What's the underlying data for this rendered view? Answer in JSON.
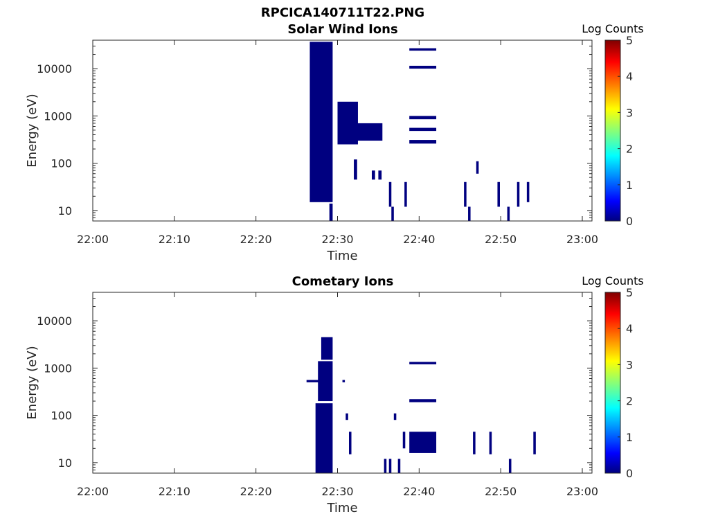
{
  "figure_title": "RPCICA140711T22.PNG",
  "chart_data": [
    {
      "type": "heatmap",
      "title": "Solar Wind Ions",
      "xlabel": "Time",
      "ylabel": "Energy (eV)",
      "x_ticks": [
        "22:00",
        "22:10",
        "22:20",
        "22:30",
        "22:40",
        "22:50",
        "23:00"
      ],
      "y_ticks": [
        "10",
        "100",
        "1000",
        "10000"
      ],
      "xlim": [
        "22:00",
        "23:00"
      ],
      "ylim": [
        6,
        40000
      ],
      "yscale": "log",
      "colorbar": {
        "label": "Log Counts",
        "min": 0,
        "max": 5,
        "ticks": [
          "0",
          "1",
          "2",
          "3",
          "4",
          "5"
        ]
      },
      "cells": [
        {
          "t0": "22:26.6",
          "t1": "22:29.4",
          "e0": 15,
          "e1": 37000,
          "v": 0
        },
        {
          "t0": "22:29.0",
          "t1": "22:29.4",
          "e0": 6,
          "e1": 14,
          "v": 0
        },
        {
          "t0": "22:30.0",
          "t1": "22:32.5",
          "e0": 250,
          "e1": 2000,
          "v": 0
        },
        {
          "t0": "22:31.5",
          "t1": "22:35.5",
          "e0": 300,
          "e1": 700,
          "v": 0
        },
        {
          "t0": "22:32.0",
          "t1": "22:32.4",
          "e0": 45,
          "e1": 120,
          "v": 0
        },
        {
          "t0": "22:34.2",
          "t1": "22:34.6",
          "e0": 45,
          "e1": 70,
          "v": 0
        },
        {
          "t0": "22:35.0",
          "t1": "22:35.4",
          "e0": 45,
          "e1": 70,
          "v": 0
        },
        {
          "t0": "22:36.3",
          "t1": "22:36.6",
          "e0": 12,
          "e1": 40,
          "v": 0
        },
        {
          "t0": "22:36.6",
          "t1": "22:36.9",
          "e0": 6,
          "e1": 12,
          "v": 0
        },
        {
          "t0": "22:38.2",
          "t1": "22:38.5",
          "e0": 12,
          "e1": 40,
          "v": 0
        },
        {
          "t0": "22:38.8",
          "t1": "22:42.1",
          "e0": 24000,
          "e1": 27000,
          "v": 0
        },
        {
          "t0": "22:38.8",
          "t1": "22:42.1",
          "e0": 10000,
          "e1": 11500,
          "v": 0
        },
        {
          "t0": "22:38.8",
          "t1": "22:42.1",
          "e0": 850,
          "e1": 1000,
          "v": 0
        },
        {
          "t0": "22:38.8",
          "t1": "22:42.1",
          "e0": 480,
          "e1": 560,
          "v": 0
        },
        {
          "t0": "22:38.8",
          "t1": "22:42.1",
          "e0": 260,
          "e1": 310,
          "v": 0
        },
        {
          "t0": "22:45.5",
          "t1": "22:45.8",
          "e0": 12,
          "e1": 40,
          "v": 0
        },
        {
          "t0": "22:46.0",
          "t1": "22:46.3",
          "e0": 6,
          "e1": 12,
          "v": 0
        },
        {
          "t0": "22:47.0",
          "t1": "22:47.3",
          "e0": 60,
          "e1": 110,
          "v": 0
        },
        {
          "t0": "22:49.6",
          "t1": "22:49.9",
          "e0": 12,
          "e1": 40,
          "v": 0
        },
        {
          "t0": "22:50.8",
          "t1": "22:51.1",
          "e0": 6,
          "e1": 12,
          "v": 0
        },
        {
          "t0": "22:52.0",
          "t1": "22:52.3",
          "e0": 12,
          "e1": 40,
          "v": 0
        },
        {
          "t0": "22:53.2",
          "t1": "22:53.5",
          "e0": 15,
          "e1": 40,
          "v": 0
        }
      ]
    },
    {
      "type": "heatmap",
      "title": "Cometary Ions",
      "xlabel": "Time",
      "ylabel": "Energy (eV)",
      "x_ticks": [
        "22:00",
        "22:10",
        "22:20",
        "22:30",
        "22:40",
        "22:50",
        "23:00"
      ],
      "y_ticks": [
        "10",
        "100",
        "1000",
        "10000"
      ],
      "xlim": [
        "22:00",
        "23:00"
      ],
      "ylim": [
        6,
        40000
      ],
      "yscale": "log",
      "colorbar": {
        "label": "Log Counts",
        "min": 0,
        "max": 5,
        "ticks": [
          "0",
          "1",
          "2",
          "3",
          "4",
          "5"
        ]
      },
      "cells": [
        {
          "t0": "22:27.3",
          "t1": "22:29.4",
          "e0": 6,
          "e1": 180,
          "v": 0
        },
        {
          "t0": "22:27.6",
          "t1": "22:29.4",
          "e0": 200,
          "e1": 1400,
          "v": 0
        },
        {
          "t0": "22:28.0",
          "t1": "22:29.4",
          "e0": 1500,
          "e1": 4500,
          "v": 0
        },
        {
          "t0": "22:26.2",
          "t1": "22:28.0",
          "e0": 500,
          "e1": 560,
          "v": 0
        },
        {
          "t0": "22:30.6",
          "t1": "22:30.9",
          "e0": 500,
          "e1": 560,
          "v": 0
        },
        {
          "t0": "22:31.0",
          "t1": "22:31.3",
          "e0": 80,
          "e1": 110,
          "v": 0
        },
        {
          "t0": "22:31.4",
          "t1": "22:31.7",
          "e0": 15,
          "e1": 45,
          "v": 0
        },
        {
          "t0": "22:35.7",
          "t1": "22:36.0",
          "e0": 6,
          "e1": 12,
          "v": 0
        },
        {
          "t0": "22:36.3",
          "t1": "22:36.6",
          "e0": 6,
          "e1": 12,
          "v": 0
        },
        {
          "t0": "22:36.9",
          "t1": "22:37.2",
          "e0": 80,
          "e1": 110,
          "v": 0
        },
        {
          "t0": "22:37.4",
          "t1": "22:37.7",
          "e0": 6,
          "e1": 12,
          "v": 0
        },
        {
          "t0": "22:38.0",
          "t1": "22:38.3",
          "e0": 20,
          "e1": 45,
          "v": 0
        },
        {
          "t0": "22:38.8",
          "t1": "22:42.1",
          "e0": 16,
          "e1": 45,
          "v": 0
        },
        {
          "t0": "22:38.8",
          "t1": "22:42.1",
          "e0": 190,
          "e1": 220,
          "v": 0
        },
        {
          "t0": "22:38.8",
          "t1": "22:42.1",
          "e0": 1200,
          "e1": 1350,
          "v": 0
        },
        {
          "t0": "22:46.6",
          "t1": "22:46.9",
          "e0": 15,
          "e1": 45,
          "v": 0
        },
        {
          "t0": "22:48.6",
          "t1": "22:48.9",
          "e0": 15,
          "e1": 45,
          "v": 0
        },
        {
          "t0": "22:51.0",
          "t1": "22:51.3",
          "e0": 6,
          "e1": 12,
          "v": 0
        },
        {
          "t0": "22:54.0",
          "t1": "22:54.3",
          "e0": 15,
          "e1": 45,
          "v": 0
        }
      ]
    }
  ],
  "colors": {
    "cell": "#000080",
    "axis": "#262626",
    "background": "#ffffff"
  },
  "colormap": [
    "#000080",
    "#0000ff",
    "#0080ff",
    "#00ffff",
    "#80ff80",
    "#ffff00",
    "#ff8000",
    "#ff0000",
    "#800000"
  ]
}
